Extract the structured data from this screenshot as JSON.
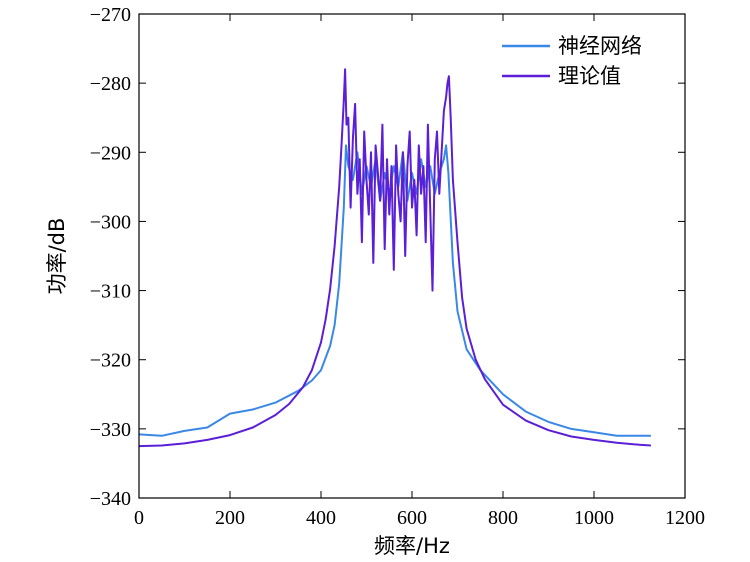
{
  "chart_data": {
    "type": "line",
    "title": "",
    "xlabel": "频率/Hz",
    "ylabel": "功率/dB",
    "xlim": [
      0,
      1200
    ],
    "ylim": [
      -340,
      -270
    ],
    "xticks": [
      0,
      200,
      400,
      600,
      800,
      1000,
      1200
    ],
    "xtick_labels": [
      "0",
      "200",
      "400",
      "600",
      "800",
      "1000",
      "1200"
    ],
    "yticks": [
      -340,
      -330,
      -320,
      -310,
      -300,
      -290,
      -280,
      -270
    ],
    "ytick_labels": [
      "−340",
      "−330",
      "−320",
      "−310",
      "−300",
      "−290",
      "−280",
      "−270"
    ],
    "grid": false,
    "legend_position": "top-right",
    "series": [
      {
        "name": "神经网络",
        "color": "#3a88e6",
        "x": [
          0,
          50,
          100,
          150,
          200,
          250,
          300,
          350,
          380,
          400,
          420,
          430,
          440,
          450,
          455,
          460,
          470,
          480,
          490,
          500,
          510,
          520,
          530,
          540,
          550,
          560,
          570,
          580,
          590,
          600,
          610,
          620,
          630,
          640,
          650,
          660,
          670,
          675,
          680,
          690,
          700,
          720,
          750,
          800,
          850,
          900,
          950,
          1000,
          1050,
          1100,
          1125
        ],
        "y": [
          -330.8,
          -331.0,
          -330.3,
          -329.8,
          -327.8,
          -327.2,
          -326.2,
          -324.5,
          -323.0,
          -321.5,
          -318.0,
          -315.0,
          -309.0,
          -298.0,
          -289.0,
          -292.0,
          -294.0,
          -290.0,
          -296.0,
          -292.0,
          -295.0,
          -291.0,
          -297.0,
          -293.0,
          -296.0,
          -292.0,
          -295.0,
          -290.0,
          -297.0,
          -293.0,
          -296.0,
          -291.0,
          -295.0,
          -292.0,
          -296.0,
          -293.0,
          -291.0,
          -289.0,
          -293.0,
          -306.0,
          -313.0,
          -318.5,
          -321.5,
          -325.0,
          -327.5,
          -329.0,
          -330.0,
          -330.5,
          -331.0,
          -331.0,
          -331.0
        ]
      },
      {
        "name": "理论值",
        "color": "#5a1fd6",
        "x": [
          0,
          50,
          100,
          150,
          200,
          250,
          300,
          330,
          360,
          380,
          400,
          410,
          420,
          430,
          440,
          445,
          450,
          453,
          456,
          460,
          465,
          470,
          475,
          480,
          485,
          490,
          495,
          500,
          505,
          510,
          515,
          520,
          525,
          530,
          535,
          540,
          545,
          550,
          555,
          560,
          565,
          570,
          575,
          580,
          585,
          590,
          595,
          600,
          605,
          610,
          615,
          620,
          625,
          630,
          635,
          640,
          645,
          650,
          655,
          660,
          665,
          670,
          675,
          678,
          681,
          685,
          690,
          700,
          710,
          720,
          740,
          760,
          800,
          850,
          900,
          950,
          1000,
          1050,
          1100,
          1125
        ],
        "y": [
          -332.5,
          -332.4,
          -332.1,
          -331.6,
          -330.9,
          -329.8,
          -328.0,
          -326.4,
          -324.0,
          -321.5,
          -317.5,
          -314.2,
          -309.8,
          -303.6,
          -295.0,
          -289.0,
          -282.5,
          -278.0,
          -286.0,
          -285.0,
          -298.0,
          -288.0,
          -283.0,
          -296.0,
          -291.0,
          -303.0,
          -287.0,
          -294.0,
          -299.0,
          -290.0,
          -306.0,
          -289.0,
          -293.0,
          -297.0,
          -286.0,
          -304.0,
          -291.0,
          -299.0,
          -292.0,
          -307.0,
          -289.0,
          -296.0,
          -300.0,
          -290.0,
          -305.0,
          -292.0,
          -287.0,
          -298.0,
          -294.0,
          -302.0,
          -289.0,
          -296.0,
          -292.0,
          -303.0,
          -286.0,
          -298.0,
          -310.0,
          -291.0,
          -287.0,
          -296.0,
          -290.0,
          -284.0,
          -282.0,
          -280.0,
          -279.0,
          -285.0,
          -294.0,
          -303.0,
          -311.0,
          -315.5,
          -320.0,
          -322.8,
          -326.5,
          -328.8,
          -330.2,
          -331.1,
          -331.6,
          -332.0,
          -332.3,
          -332.4
        ]
      }
    ]
  }
}
